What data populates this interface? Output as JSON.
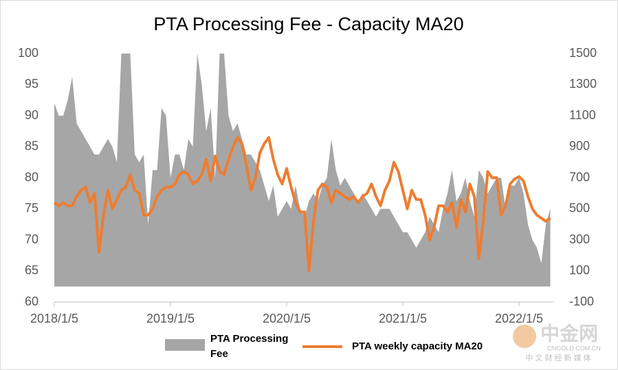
{
  "chart_data": {
    "type": "area-line",
    "title": "PTA Processing Fee - Capacity MA20",
    "categories": [
      "2018/1/5",
      null,
      null,
      null,
      null,
      null,
      null,
      null,
      null,
      null,
      null,
      null,
      null,
      null,
      null,
      null,
      null,
      null,
      null,
      null,
      null,
      null,
      null,
      null,
      null,
      null,
      "2019/1/5",
      null,
      null,
      null,
      null,
      null,
      null,
      null,
      null,
      null,
      null,
      null,
      null,
      null,
      null,
      null,
      null,
      null,
      null,
      null,
      null,
      null,
      null,
      null,
      null,
      null,
      "2020/1/5",
      null,
      null,
      null,
      null,
      null,
      null,
      null,
      null,
      null,
      null,
      null,
      null,
      null,
      null,
      null,
      null,
      null,
      null,
      null,
      null,
      null,
      null,
      null,
      null,
      null,
      "2021/1/5",
      null,
      null,
      null,
      null,
      null,
      null,
      null,
      null,
      null,
      null,
      null,
      null,
      null,
      null,
      null,
      null,
      null,
      null,
      null,
      null,
      null,
      null,
      null,
      null,
      null,
      "2022/1/5",
      null,
      null,
      null,
      null,
      null,
      null,
      null
    ],
    "series": [
      {
        "name": "PTA Processing Fee",
        "kind": "area",
        "axis": "y2",
        "color": "#a6a6a6",
        "values": [
          1180,
          1100,
          1100,
          1200,
          1350,
          1050,
          1000,
          950,
          900,
          850,
          850,
          900,
          950,
          900,
          800,
          1500,
          1500,
          1500,
          850,
          800,
          850,
          400,
          750,
          750,
          1150,
          1100,
          700,
          850,
          850,
          750,
          950,
          900,
          1500,
          1300,
          1000,
          1150,
          700,
          1500,
          1500,
          1100,
          1000,
          1050,
          950,
          850,
          850,
          800,
          750,
          650,
          550,
          650,
          450,
          500,
          550,
          500,
          650,
          500,
          450,
          550,
          600,
          550,
          650,
          700,
          950,
          750,
          650,
          700,
          650,
          600,
          550,
          600,
          550,
          500,
          450,
          500,
          500,
          500,
          450,
          400,
          350,
          350,
          300,
          250,
          300,
          350,
          450,
          400,
          350,
          500,
          600,
          750,
          550,
          600,
          700,
          550,
          450,
          750,
          700,
          600,
          650,
          700,
          700,
          500,
          650,
          650,
          700,
          600,
          400,
          300,
          250,
          150,
          400,
          500
        ]
      },
      {
        "name": "PTA weekly capacity MA20",
        "kind": "line",
        "axis": "y",
        "color": "#ed7d31",
        "values": [
          76,
          75.5,
          76,
          75.5,
          75.5,
          77,
          78,
          78.5,
          76,
          77.5,
          68,
          74,
          78,
          75,
          76.5,
          78,
          78.5,
          80.5,
          78,
          77.5,
          74,
          74,
          75,
          77,
          78,
          78.5,
          78.5,
          79,
          80.5,
          81,
          80.5,
          79,
          79.5,
          80.5,
          83,
          79.5,
          83.5,
          81,
          80.5,
          83,
          85,
          86.5,
          85.5,
          82,
          78,
          80,
          84,
          85.5,
          86.5,
          83,
          80.5,
          79,
          81.5,
          78.5,
          76,
          74.5,
          74.5,
          65,
          73,
          78,
          79,
          78.5,
          76,
          78,
          77.5,
          77,
          76.5,
          77,
          76,
          77,
          77.5,
          79,
          77,
          75.5,
          78,
          79.5,
          82.5,
          81,
          78,
          75,
          78,
          76.5,
          76.5,
          74,
          70,
          72,
          75.5,
          75.5,
          74.5,
          76,
          72,
          76.5,
          74.5,
          79,
          77,
          67,
          73,
          81,
          80,
          80,
          74,
          75.5,
          79,
          79.8,
          80.2,
          79.5,
          77,
          75,
          74,
          73.5,
          73,
          73.5
        ]
      }
    ],
    "ylim": [
      60,
      100
    ],
    "yticks": [
      60,
      65,
      70,
      75,
      80,
      85,
      90,
      95,
      100
    ],
    "y2lim": [
      -100,
      1500
    ],
    "y2ticks": [
      -100,
      100,
      300,
      500,
      700,
      900,
      1100,
      1300,
      1500
    ],
    "grid": false,
    "watermark": {
      "brand": "中金网",
      "site": "CNGOLD.COM.CN",
      "tagline": "中 文 财 经 新 媒 体"
    }
  }
}
